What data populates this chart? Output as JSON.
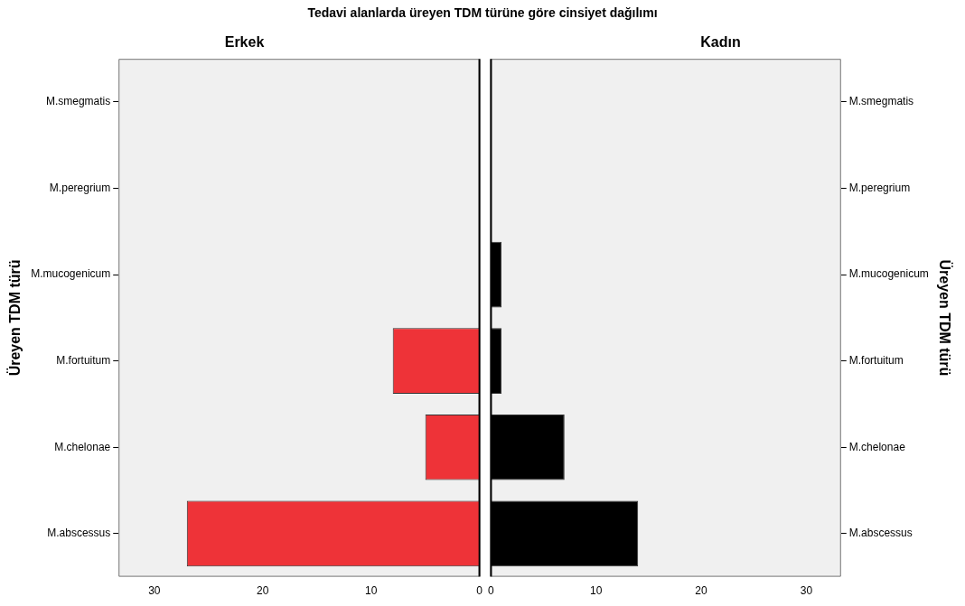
{
  "chart_data": [
    {
      "type": "bar",
      "orientation": "horizontal",
      "title": "Tedavi alanlarda üreyen TDM türüne göre cinsiyet dağılımı",
      "subtitle": "Erkek",
      "ylabel": "Üreyen TDM türü",
      "categories": [
        "M.smegmatis",
        "M.peregrium",
        "M.mucogenicum",
        "M.fortuitum",
        "M.chelonae",
        "M.abscessus"
      ],
      "values": [
        0,
        0,
        0,
        8,
        5,
        27
      ],
      "color": "#ee3338",
      "xlim": [
        33.3,
        0
      ],
      "xticks": [
        30,
        20,
        10,
        0
      ],
      "grid": false,
      "legend": false
    },
    {
      "type": "bar",
      "orientation": "horizontal",
      "subtitle": "Kadın",
      "ylabel": "Üreyen TDM türü",
      "categories": [
        "M.smegmatis",
        "M.peregrium",
        "M.mucogenicum",
        "M.fortuitum",
        "M.chelonae",
        "M.abscessus"
      ],
      "values": [
        0,
        0,
        1,
        1,
        7,
        14
      ],
      "color": "#000000",
      "xlim": [
        0,
        33.3
      ],
      "xticks": [
        0,
        10,
        20,
        30
      ],
      "grid": false,
      "legend": false
    }
  ]
}
